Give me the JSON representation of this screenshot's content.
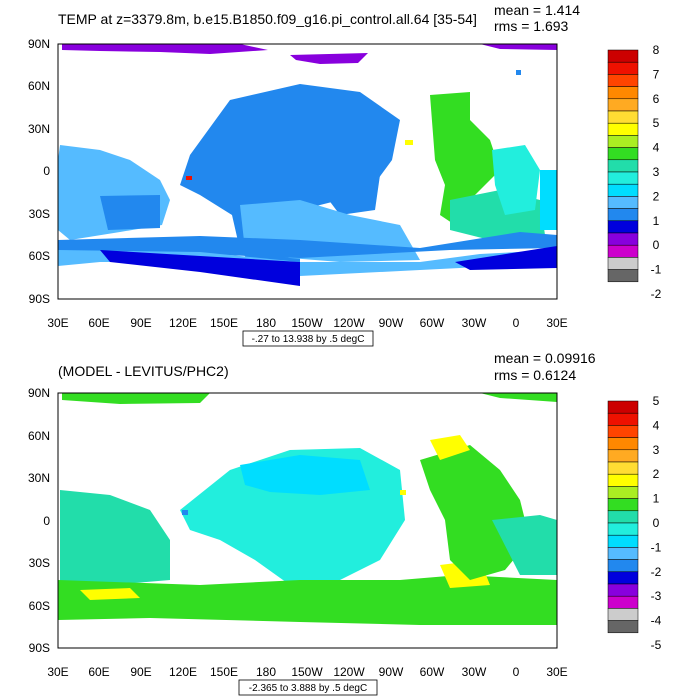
{
  "chart_data": [
    {
      "type": "heatmap",
      "title": "TEMP at z=3379.8m, b.e15.B1850.f09_g16.pi_control.all.64 [35-54]",
      "stats": {
        "mean_label": "mean = 1.414",
        "rms_label": "rms = 1.693"
      },
      "x_ticks": [
        "30E",
        "60E",
        "90E",
        "120E",
        "150E",
        "180",
        "150W",
        "120W",
        "90W",
        "60W",
        "30W",
        "0",
        "30E"
      ],
      "y_ticks": [
        "90N",
        "60N",
        "30N",
        "0",
        "30S",
        "60S",
        "90S"
      ],
      "range_label": "-.27 to 13.938 by .5 degC",
      "colorbar": {
        "labels": [
          "8",
          "7",
          "6",
          "5",
          "4",
          "3",
          "2",
          "1",
          "0",
          "-1",
          "-2"
        ],
        "colors": [
          "#cc0000",
          "#ee1100",
          "#ff4400",
          "#ff8800",
          "#ffaa22",
          "#ffdd33",
          "#ffff00",
          "#aaee22",
          "#33dd22",
          "#22ddaa",
          "#22eedd",
          "#00ddff",
          "#55bbff",
          "#2288ee",
          "#0000dd",
          "#8800dd",
          "#cc00cc",
          "#cccccc",
          "#666666"
        ]
      }
    },
    {
      "type": "heatmap",
      "title": "(MODEL - LEVITUS/PHC2)",
      "stats": {
        "mean_label": "mean = 0.09916",
        "rms_label": "rms = 0.6124"
      },
      "x_ticks": [
        "30E",
        "60E",
        "90E",
        "120E",
        "150E",
        "180",
        "150W",
        "120W",
        "90W",
        "60W",
        "30W",
        "0",
        "30E"
      ],
      "y_ticks": [
        "90N",
        "60N",
        "30N",
        "0",
        "30S",
        "60S",
        "90S"
      ],
      "range_label": "-2.365 to 3.888 by .5 degC",
      "colorbar": {
        "labels": [
          "5",
          "4",
          "3",
          "2",
          "1",
          "0",
          "-1",
          "-2",
          "-3",
          "-4",
          "-5"
        ],
        "colors": [
          "#cc0000",
          "#ee1100",
          "#ff4400",
          "#ff8800",
          "#ffaa22",
          "#ffdd33",
          "#ffff00",
          "#aaee22",
          "#33dd22",
          "#22ddaa",
          "#22eedd",
          "#00ddff",
          "#55bbff",
          "#2288ee",
          "#0000dd",
          "#8800dd",
          "#cc00cc",
          "#cccccc",
          "#666666"
        ]
      }
    }
  ]
}
